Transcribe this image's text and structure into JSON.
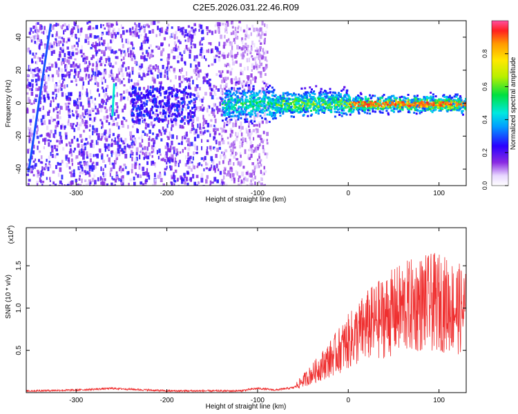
{
  "title": "C2E5.2026.031.22.46.R09",
  "chart_data": [
    {
      "type": "heatmap",
      "xlabel": "Height of straight line (km)",
      "ylabel": "Frequency (Hz)",
      "xlim": [
        -355,
        130
      ],
      "ylim": [
        -50,
        50
      ],
      "x_ticks": [
        -300,
        -200,
        -100,
        0,
        100
      ],
      "y_ticks": [
        -40,
        -20,
        0,
        20,
        40
      ],
      "colorbar": {
        "label": "Normalized spectral amplitude",
        "range": [
          0,
          1.0
        ],
        "ticks": [
          0.0,
          0.2,
          0.4,
          0.6,
          0.8
        ],
        "scale": "rainbow"
      },
      "features": [
        {
          "x0": -352,
          "y0": -40,
          "x1": -328,
          "y1": 48,
          "amplitude": 0.3
        },
        {
          "x0": -260,
          "y0": -8,
          "x1": -258,
          "y1": 12,
          "amplitude": 0.45
        },
        {
          "x0": -140,
          "y0": 0,
          "x1": 130,
          "y1": 0,
          "amplitude": 0.9
        }
      ]
    },
    {
      "type": "line",
      "xlabel": "Height of straight line (km)",
      "ylabel": "SNR (10 * v/v)",
      "y_multiplier": "(x10",
      "y_multiplier_exp": "4",
      "xlim": [
        -355,
        130
      ],
      "ylim": [
        0,
        1.95
      ],
      "x_ticks": [
        -300,
        -200,
        -100,
        0,
        100
      ],
      "y_ticks": [
        0.5,
        1.0,
        1.5
      ],
      "color": "#ef3030",
      "series": [
        {
          "x": [
            -355,
            -300,
            -260,
            -200,
            -150,
            -120,
            -100,
            -80,
            -60,
            -40,
            -20,
            0,
            20,
            40,
            60,
            80,
            100,
            120,
            130
          ],
          "values": [
            0.02,
            0.03,
            0.05,
            0.02,
            0.02,
            0.02,
            0.05,
            0.03,
            0.06,
            0.22,
            0.4,
            0.6,
            0.78,
            0.9,
            1.0,
            1.05,
            1.07,
            1.0,
            0.95
          ]
        }
      ]
    }
  ]
}
